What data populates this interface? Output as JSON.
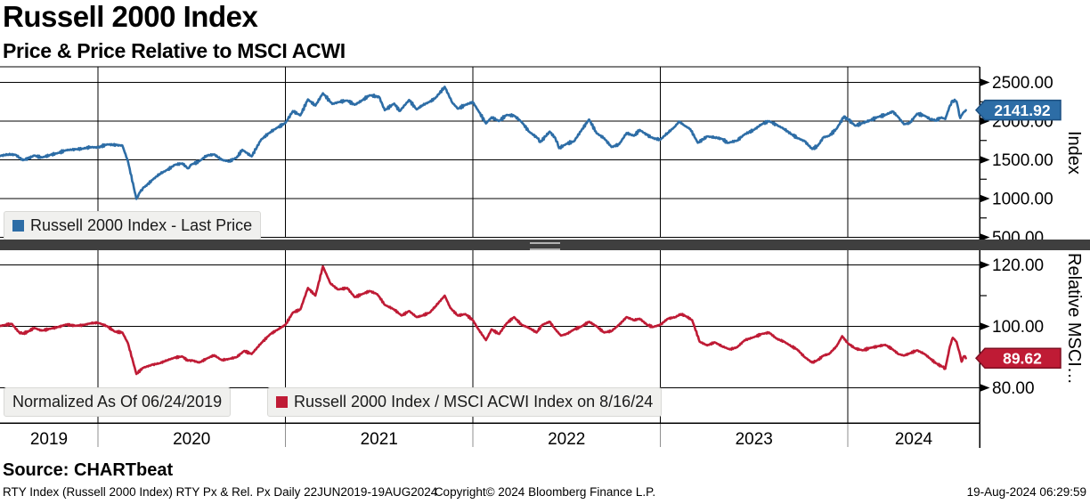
{
  "header": {
    "title": "Russell 2000 Index",
    "subtitle": "Price & Price Relative to MSCI ACWI"
  },
  "panes": {
    "top": {
      "legend": "Russell 2000 Index - Last Price",
      "axis_title": "Index",
      "last_price_label": "2141.92"
    },
    "bottom": {
      "legend_note": "Normalized As Of 06/24/2019",
      "legend": "Russell 2000 Index / MSCI ACWI Index on 8/16/24",
      "axis_title": "Relative MSCI…",
      "last_price_label": "89.62"
    }
  },
  "x_axis": {
    "year_labels": [
      "2019",
      "2020",
      "2021",
      "2022",
      "2023",
      "2024"
    ]
  },
  "footer": {
    "source": "Source: CHARTbeat",
    "left": "RTY Index (Russell 2000 Index) RTY Px & Rel. Px  Daily 22JUN2019-19AUG2024",
    "center": "Copyright© 2024 Bloomberg Finance L.P.",
    "right": "19-Aug-2024 06:29:59"
  },
  "colors": {
    "russell": "#2d6da6",
    "russell_dark": "#1c4f80",
    "relative": "#bf1b35",
    "relative_dark": "#7e0f22",
    "grid": "#000000",
    "year_sep": "#8f8f8f",
    "separator": "#3f3f3f",
    "tag_text": "#ffffff"
  },
  "chart_data": [
    {
      "type": "line",
      "name": "Russell 2000 Index - Last Price",
      "pane": "top",
      "ylabel": "Index",
      "ylim": [
        500,
        2500
      ],
      "yticks": [
        500,
        1000,
        1500,
        2000,
        2500
      ],
      "minor_yticks": [
        750,
        1250,
        1750,
        2250
      ],
      "x_unit": "decimal_year",
      "xlim": [
        2019.477,
        2024.703
      ],
      "x_gridlines": [
        2020,
        2021,
        2022,
        2023,
        2024
      ],
      "last_price": 2141.92,
      "legend_position": "bottom-left",
      "grid": true,
      "points": [
        [
          2019.47,
          1548
        ],
        [
          2019.52,
          1570
        ],
        [
          2019.56,
          1565
        ],
        [
          2019.6,
          1495
        ],
        [
          2019.63,
          1520
        ],
        [
          2019.66,
          1555
        ],
        [
          2019.7,
          1530
        ],
        [
          2019.75,
          1565
        ],
        [
          2019.79,
          1590
        ],
        [
          2019.83,
          1625
        ],
        [
          2019.88,
          1635
        ],
        [
          2019.92,
          1645
        ],
        [
          2019.96,
          1665
        ],
        [
          2020.0,
          1660
        ],
        [
          2020.05,
          1700
        ],
        [
          2020.1,
          1690
        ],
        [
          2020.13,
          1685
        ],
        [
          2020.16,
          1480
        ],
        [
          2020.205,
          995
        ],
        [
          2020.23,
          1110
        ],
        [
          2020.25,
          1150
        ],
        [
          2020.29,
          1240
        ],
        [
          2020.33,
          1320
        ],
        [
          2020.37,
          1370
        ],
        [
          2020.41,
          1435
        ],
        [
          2020.45,
          1455
        ],
        [
          2020.48,
          1390
        ],
        [
          2020.5,
          1441
        ],
        [
          2020.54,
          1480
        ],
        [
          2020.58,
          1555
        ],
        [
          2020.62,
          1570
        ],
        [
          2020.66,
          1500
        ],
        [
          2020.7,
          1480
        ],
        [
          2020.74,
          1530
        ],
        [
          2020.77,
          1630
        ],
        [
          2020.82,
          1545
        ],
        [
          2020.87,
          1760
        ],
        [
          2020.92,
          1860
        ],
        [
          2020.96,
          1920
        ],
        [
          2021.0,
          1975
        ],
        [
          2021.04,
          2130
        ],
        [
          2021.08,
          2073
        ],
        [
          2021.12,
          2280
        ],
        [
          2021.16,
          2200
        ],
        [
          2021.2,
          2360
        ],
        [
          2021.25,
          2221
        ],
        [
          2021.29,
          2250
        ],
        [
          2021.33,
          2266
        ],
        [
          2021.37,
          2210
        ],
        [
          2021.41,
          2269
        ],
        [
          2021.45,
          2335
        ],
        [
          2021.5,
          2311
        ],
        [
          2021.53,
          2140
        ],
        [
          2021.58,
          2226
        ],
        [
          2021.61,
          2130
        ],
        [
          2021.66,
          2273
        ],
        [
          2021.7,
          2150
        ],
        [
          2021.73,
          2204
        ],
        [
          2021.77,
          2250
        ],
        [
          2021.8,
          2297
        ],
        [
          2021.85,
          2442
        ],
        [
          2021.89,
          2240
        ],
        [
          2021.92,
          2160
        ],
        [
          2021.96,
          2210
        ],
        [
          2022.0,
          2245
        ],
        [
          2022.03,
          2130
        ],
        [
          2022.07,
          1970
        ],
        [
          2022.1,
          2048
        ],
        [
          2022.14,
          2000
        ],
        [
          2022.18,
          2080
        ],
        [
          2022.22,
          2070
        ],
        [
          2022.26,
          1990
        ],
        [
          2022.3,
          1864
        ],
        [
          2022.34,
          1790
        ],
        [
          2022.36,
          1730
        ],
        [
          2022.41,
          1864
        ],
        [
          2022.44,
          1780
        ],
        [
          2022.46,
          1650
        ],
        [
          2022.5,
          1708
        ],
        [
          2022.54,
          1740
        ],
        [
          2022.58,
          1885
        ],
        [
          2022.62,
          2021
        ],
        [
          2022.66,
          1844
        ],
        [
          2022.7,
          1780
        ],
        [
          2022.74,
          1665
        ],
        [
          2022.78,
          1700
        ],
        [
          2022.82,
          1846
        ],
        [
          2022.86,
          1810
        ],
        [
          2022.89,
          1886
        ],
        [
          2022.93,
          1820
        ],
        [
          2022.96,
          1780
        ],
        [
          2023.0,
          1761
        ],
        [
          2023.04,
          1850
        ],
        [
          2023.08,
          1932
        ],
        [
          2023.1,
          1995
        ],
        [
          2023.13,
          1940
        ],
        [
          2023.16,
          1897
        ],
        [
          2023.2,
          1720
        ],
        [
          2023.25,
          1802
        ],
        [
          2023.29,
          1790
        ],
        [
          2023.33,
          1769
        ],
        [
          2023.36,
          1718
        ],
        [
          2023.41,
          1750
        ],
        [
          2023.45,
          1830
        ],
        [
          2023.5,
          1888
        ],
        [
          2023.54,
          1960
        ],
        [
          2023.58,
          2000
        ],
        [
          2023.62,
          1950
        ],
        [
          2023.66,
          1900
        ],
        [
          2023.7,
          1830
        ],
        [
          2023.73,
          1785
        ],
        [
          2023.77,
          1740
        ],
        [
          2023.81,
          1640
        ],
        [
          2023.84,
          1680
        ],
        [
          2023.87,
          1790
        ],
        [
          2023.9,
          1809
        ],
        [
          2023.94,
          1900
        ],
        [
          2023.98,
          2060
        ],
        [
          2024.0,
          2027
        ],
        [
          2024.04,
          1940
        ],
        [
          2024.08,
          1975
        ],
        [
          2024.12,
          2010
        ],
        [
          2024.16,
          2054
        ],
        [
          2024.2,
          2080
        ],
        [
          2024.24,
          2124
        ],
        [
          2024.27,
          2050
        ],
        [
          2024.3,
          1960
        ],
        [
          2024.33,
          1974
        ],
        [
          2024.37,
          2095
        ],
        [
          2024.41,
          2070
        ],
        [
          2024.44,
          2025
        ],
        [
          2024.47,
          2010
        ],
        [
          2024.5,
          2048
        ],
        [
          2024.52,
          2026
        ],
        [
          2024.545,
          2200
        ],
        [
          2024.56,
          2263
        ],
        [
          2024.58,
          2254
        ],
        [
          2024.6,
          2039
        ],
        [
          2024.61,
          2085
        ],
        [
          2024.62,
          2120
        ],
        [
          2024.63,
          2141.92
        ]
      ]
    },
    {
      "type": "line",
      "name": "Russell 2000 Index / MSCI ACWI Index on 8/16/24",
      "pane": "bottom",
      "ylabel": "Relative MSCI…",
      "normalized_as_of": "06/24/2019",
      "ylim": [
        80,
        120
      ],
      "yticks": [
        80,
        100,
        120
      ],
      "minor_yticks": [
        90,
        110
      ],
      "x_unit": "decimal_year",
      "xlim": [
        2019.477,
        2024.703
      ],
      "x_gridlines": [
        2020,
        2021,
        2022,
        2023,
        2024
      ],
      "last_price": 89.62,
      "legend_position": "bottom-left",
      "grid": true,
      "points": [
        [
          2019.47,
          100.0
        ],
        [
          2019.5,
          100.4
        ],
        [
          2019.54,
          100.8
        ],
        [
          2019.58,
          98.0
        ],
        [
          2019.6,
          97.6
        ],
        [
          2019.63,
          98.4
        ],
        [
          2019.66,
          99.5
        ],
        [
          2019.7,
          98.6
        ],
        [
          2019.75,
          99.3
        ],
        [
          2019.79,
          99.8
        ],
        [
          2019.83,
          100.6
        ],
        [
          2019.88,
          100.2
        ],
        [
          2019.92,
          100.4
        ],
        [
          2019.96,
          101.0
        ],
        [
          2020.0,
          101.2
        ],
        [
          2020.05,
          100.0
        ],
        [
          2020.09,
          98.3
        ],
        [
          2020.13,
          98.0
        ],
        [
          2020.16,
          94.5
        ],
        [
          2020.205,
          84.5
        ],
        [
          2020.24,
          86.5
        ],
        [
          2020.29,
          87.5
        ],
        [
          2020.33,
          88.0
        ],
        [
          2020.37,
          89.0
        ],
        [
          2020.41,
          89.8
        ],
        [
          2020.45,
          90.2
        ],
        [
          2020.48,
          88.8
        ],
        [
          2020.5,
          89.0
        ],
        [
          2020.54,
          88.2
        ],
        [
          2020.58,
          89.5
        ],
        [
          2020.62,
          90.6
        ],
        [
          2020.66,
          89.0
        ],
        [
          2020.7,
          89.4
        ],
        [
          2020.74,
          90.0
        ],
        [
          2020.78,
          92.0
        ],
        [
          2020.82,
          91.0
        ],
        [
          2020.87,
          94.5
        ],
        [
          2020.92,
          97.5
        ],
        [
          2020.96,
          99.0
        ],
        [
          2021.0,
          100.5
        ],
        [
          2021.04,
          104.5
        ],
        [
          2021.08,
          105.5
        ],
        [
          2021.12,
          112.5
        ],
        [
          2021.16,
          110.0
        ],
        [
          2021.2,
          119.5
        ],
        [
          2021.24,
          114.0
        ],
        [
          2021.28,
          112.0
        ],
        [
          2021.33,
          112.5
        ],
        [
          2021.37,
          109.5
        ],
        [
          2021.41,
          110.5
        ],
        [
          2021.45,
          111.5
        ],
        [
          2021.49,
          110.5
        ],
        [
          2021.53,
          107.0
        ],
        [
          2021.58,
          105.5
        ],
        [
          2021.62,
          103.5
        ],
        [
          2021.66,
          105.0
        ],
        [
          2021.7,
          103.0
        ],
        [
          2021.73,
          103.5
        ],
        [
          2021.77,
          104.5
        ],
        [
          2021.8,
          106.5
        ],
        [
          2021.85,
          110.0
        ],
        [
          2021.88,
          106.0
        ],
        [
          2021.92,
          103.5
        ],
        [
          2021.96,
          104.0
        ],
        [
          2022.0,
          102.0
        ],
        [
          2022.03,
          99.0
        ],
        [
          2022.07,
          95.5
        ],
        [
          2022.1,
          99.0
        ],
        [
          2022.14,
          97.5
        ],
        [
          2022.18,
          101.0
        ],
        [
          2022.22,
          103.0
        ],
        [
          2022.26,
          100.5
        ],
        [
          2022.3,
          99.5
        ],
        [
          2022.34,
          98.0
        ],
        [
          2022.37,
          100.5
        ],
        [
          2022.41,
          101.5
        ],
        [
          2022.44,
          99.0
        ],
        [
          2022.47,
          97.0
        ],
        [
          2022.5,
          97.5
        ],
        [
          2022.54,
          99.0
        ],
        [
          2022.58,
          100.0
        ],
        [
          2022.62,
          101.5
        ],
        [
          2022.66,
          100.0
        ],
        [
          2022.7,
          98.0
        ],
        [
          2022.74,
          98.5
        ],
        [
          2022.78,
          100.5
        ],
        [
          2022.82,
          103.0
        ],
        [
          2022.86,
          102.0
        ],
        [
          2022.89,
          102.5
        ],
        [
          2022.93,
          100.5
        ],
        [
          2022.96,
          99.8
        ],
        [
          2023.0,
          100.5
        ],
        [
          2023.04,
          102.5
        ],
        [
          2023.08,
          103.0
        ],
        [
          2023.11,
          104.0
        ],
        [
          2023.14,
          103.2
        ],
        [
          2023.17,
          102.0
        ],
        [
          2023.21,
          95.0
        ],
        [
          2023.25,
          93.8
        ],
        [
          2023.29,
          94.8
        ],
        [
          2023.33,
          93.5
        ],
        [
          2023.37,
          92.5
        ],
        [
          2023.41,
          93.2
        ],
        [
          2023.45,
          95.5
        ],
        [
          2023.5,
          96.5
        ],
        [
          2023.54,
          97.5
        ],
        [
          2023.58,
          98.0
        ],
        [
          2023.62,
          96.0
        ],
        [
          2023.66,
          95.0
        ],
        [
          2023.7,
          93.5
        ],
        [
          2023.73,
          92.5
        ],
        [
          2023.77,
          90.0
        ],
        [
          2023.81,
          88.2
        ],
        [
          2023.84,
          89.0
        ],
        [
          2023.87,
          90.5
        ],
        [
          2023.9,
          91.0
        ],
        [
          2023.94,
          93.5
        ],
        [
          2023.97,
          96.8
        ],
        [
          2024.0,
          94.5
        ],
        [
          2024.04,
          92.8
        ],
        [
          2024.08,
          92.2
        ],
        [
          2024.12,
          93.0
        ],
        [
          2024.16,
          93.5
        ],
        [
          2024.2,
          94.0
        ],
        [
          2024.24,
          92.5
        ],
        [
          2024.27,
          91.0
        ],
        [
          2024.3,
          90.5
        ],
        [
          2024.33,
          91.2
        ],
        [
          2024.37,
          92.2
        ],
        [
          2024.41,
          91.0
        ],
        [
          2024.44,
          89.5
        ],
        [
          2024.47,
          88.0
        ],
        [
          2024.5,
          87.0
        ],
        [
          2024.52,
          86.2
        ],
        [
          2024.545,
          93.5
        ],
        [
          2024.56,
          96.3
        ],
        [
          2024.58,
          95.0
        ],
        [
          2024.6,
          90.5
        ],
        [
          2024.607,
          88.5
        ],
        [
          2024.62,
          90.3
        ],
        [
          2024.63,
          89.62
        ]
      ]
    }
  ]
}
